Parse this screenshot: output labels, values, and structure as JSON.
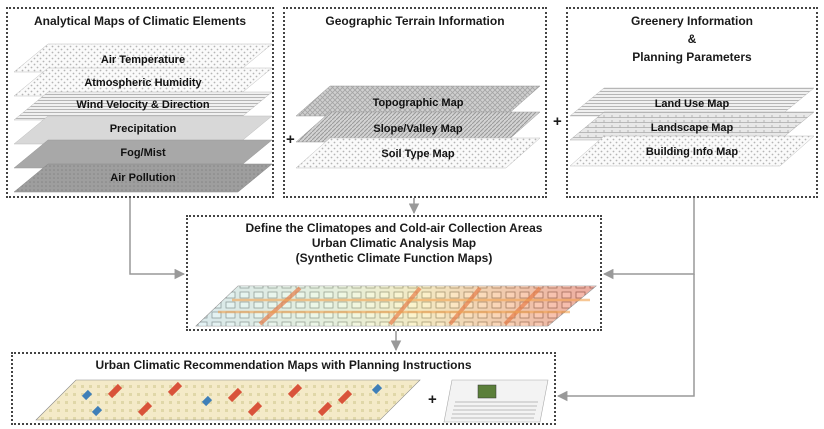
{
  "boxes": {
    "climatic": {
      "title": "Analytical Maps of Climatic Elements",
      "layers": [
        "Air Temperature",
        "Atmospheric Humidity",
        "Wind Velocity & Direction",
        "Precipitation",
        "Fog/Mist",
        "Air Pollution"
      ]
    },
    "terrain": {
      "title": "Geographic Terrain Information",
      "layers": [
        "Topographic Map",
        "Slope/Valley Map",
        "Soil Type Map"
      ]
    },
    "greenery": {
      "title_lines": [
        "Greenery Information",
        "&",
        "Planning Parameters"
      ],
      "layers": [
        "Land Use Map",
        "Landscape Map",
        "Building Info Map"
      ]
    },
    "analysis": {
      "title_lines": [
        "Define the Climatopes and Cold-air Collection Areas",
        "Urban Climatic Analysis Map",
        "(Synthetic Climate Function Maps)"
      ]
    },
    "recommendation": {
      "title": "Urban Climatic Recommendation Maps with Planning Instructions"
    }
  },
  "operators": {
    "plus": "+"
  },
  "colors": {
    "arrow": "#999999",
    "border": "#444444"
  }
}
